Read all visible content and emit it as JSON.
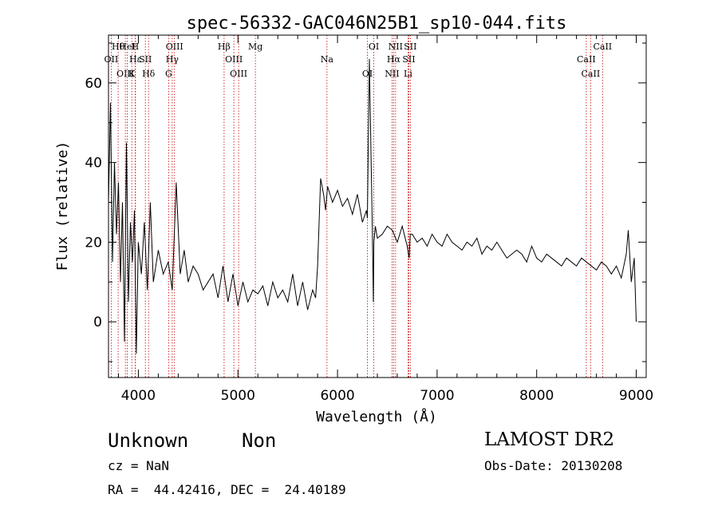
{
  "chart_data": {
    "type": "line",
    "title": "spec-56332-GAC046N25B1_sp10-044.fits",
    "xlabel": "Wavelength (Å)",
    "ylabel": "Flux (relative)",
    "xlim": [
      3700,
      9100
    ],
    "ylim": [
      -14,
      72
    ],
    "xticks": [
      4000,
      5000,
      6000,
      7000,
      8000,
      9000
    ],
    "yticks": [
      0,
      20,
      40,
      60
    ],
    "series": [
      {
        "values_note_free": true,
        "x": [
          3700,
          3720,
          3740,
          3760,
          3780,
          3800,
          3820,
          3840,
          3860,
          3880,
          3900,
          3920,
          3940,
          3960,
          3980,
          4000,
          4030,
          4060,
          4090,
          4120,
          4150,
          4200,
          4250,
          4300,
          4340,
          4380,
          4420,
          4460,
          4500,
          4550,
          4600,
          4650,
          4700,
          4750,
          4800,
          4850,
          4900,
          4950,
          5000,
          5050,
          5100,
          5150,
          5200,
          5250,
          5300,
          5350,
          5400,
          5450,
          5500,
          5550,
          5600,
          5650,
          5700,
          5750,
          5780,
          5800,
          5830,
          5860,
          5880,
          5900,
          5950,
          6000,
          6050,
          6100,
          6150,
          6200,
          6250,
          6290,
          6300,
          6320,
          6350,
          6360,
          6365,
          6380,
          6400,
          6450,
          6500,
          6550,
          6600,
          6650,
          6700,
          6720,
          6730,
          6750,
          6800,
          6850,
          6900,
          6950,
          7000,
          7050,
          7100,
          7150,
          7200,
          7250,
          7300,
          7350,
          7400,
          7450,
          7500,
          7550,
          7600,
          7650,
          7700,
          7750,
          7800,
          7850,
          7900,
          7950,
          8000,
          8050,
          8100,
          8150,
          8200,
          8250,
          8300,
          8350,
          8400,
          8450,
          8500,
          8550,
          8600,
          8650,
          8700,
          8750,
          8800,
          8850,
          8900,
          8920,
          8950,
          8980,
          9000
        ],
        "y": [
          30,
          55,
          15,
          40,
          22,
          35,
          10,
          30,
          -5,
          45,
          5,
          25,
          15,
          28,
          -8,
          20,
          12,
          25,
          8,
          30,
          10,
          18,
          12,
          15,
          8,
          35,
          12,
          18,
          10,
          14,
          12,
          8,
          10,
          12,
          6,
          14,
          5,
          12,
          4,
          10,
          5,
          8,
          7,
          9,
          4,
          10,
          6,
          8,
          5,
          12,
          4,
          10,
          3,
          8,
          6,
          14,
          36,
          32,
          28,
          34,
          30,
          33,
          29,
          31,
          27,
          32,
          25,
          28,
          26,
          66,
          22,
          5,
          20,
          24,
          21,
          22,
          24,
          23,
          20,
          24,
          19,
          16,
          22,
          22,
          20,
          21,
          19,
          22,
          20,
          19,
          22,
          20,
          19,
          18,
          20,
          19,
          21,
          17,
          19,
          18,
          20,
          18,
          16,
          17,
          18,
          17,
          15,
          19,
          16,
          15,
          17,
          16,
          15,
          14,
          16,
          15,
          14,
          16,
          15,
          14,
          13,
          15,
          14,
          12,
          14,
          11,
          17,
          23,
          10,
          16,
          0
        ]
      }
    ],
    "lines": [
      {
        "label": "Hθ",
        "x": 3797
      },
      {
        "label": "OII",
        "x": 3727
      },
      {
        "label": "OIII",
        "x": 3869
      },
      {
        "label": "HeI",
        "x": 3889
      },
      {
        "label": "Hε",
        "x": 3970
      },
      {
        "label": "K",
        "x": 3934
      },
      {
        "label": "H",
        "x": 3968
      },
      {
        "label": "SII",
        "x": 4070
      },
      {
        "label": "Hδ",
        "x": 4102
      },
      {
        "label": "OIII",
        "x": 4363
      },
      {
        "label": "Hγ",
        "x": 4340
      },
      {
        "label": "G",
        "x": 4304
      },
      {
        "label": "Hβ",
        "x": 4861
      },
      {
        "label": "OIII",
        "x": 4959
      },
      {
        "label": "OIII",
        "x": 5007
      },
      {
        "label": "Mg",
        "x": 5175
      },
      {
        "label": "Na",
        "x": 5894
      },
      {
        "label": "OI",
        "x": 6300
      },
      {
        "label": "OI",
        "x": 6364
      },
      {
        "label": "Hα",
        "x": 6563
      },
      {
        "label": "NII",
        "x": 6548
      },
      {
        "label": "NII",
        "x": 6583
      },
      {
        "label": "SII",
        "x": 6716
      },
      {
        "label": "Li",
        "x": 6708
      },
      {
        "label": "SII",
        "x": 6731
      },
      {
        "label": "CaII",
        "x": 8498
      },
      {
        "label": "CaII",
        "x": 8542
      },
      {
        "label": "CaII",
        "x": 8662
      }
    ]
  },
  "info": {
    "object_class": "Unknown",
    "object_subclass": "Non",
    "redshift": "cz = NaN",
    "coords": "RA =  44.42416, DEC =  24.40189",
    "survey": "LAMOST DR2",
    "obs_date": "Obs-Date: 20130208"
  }
}
